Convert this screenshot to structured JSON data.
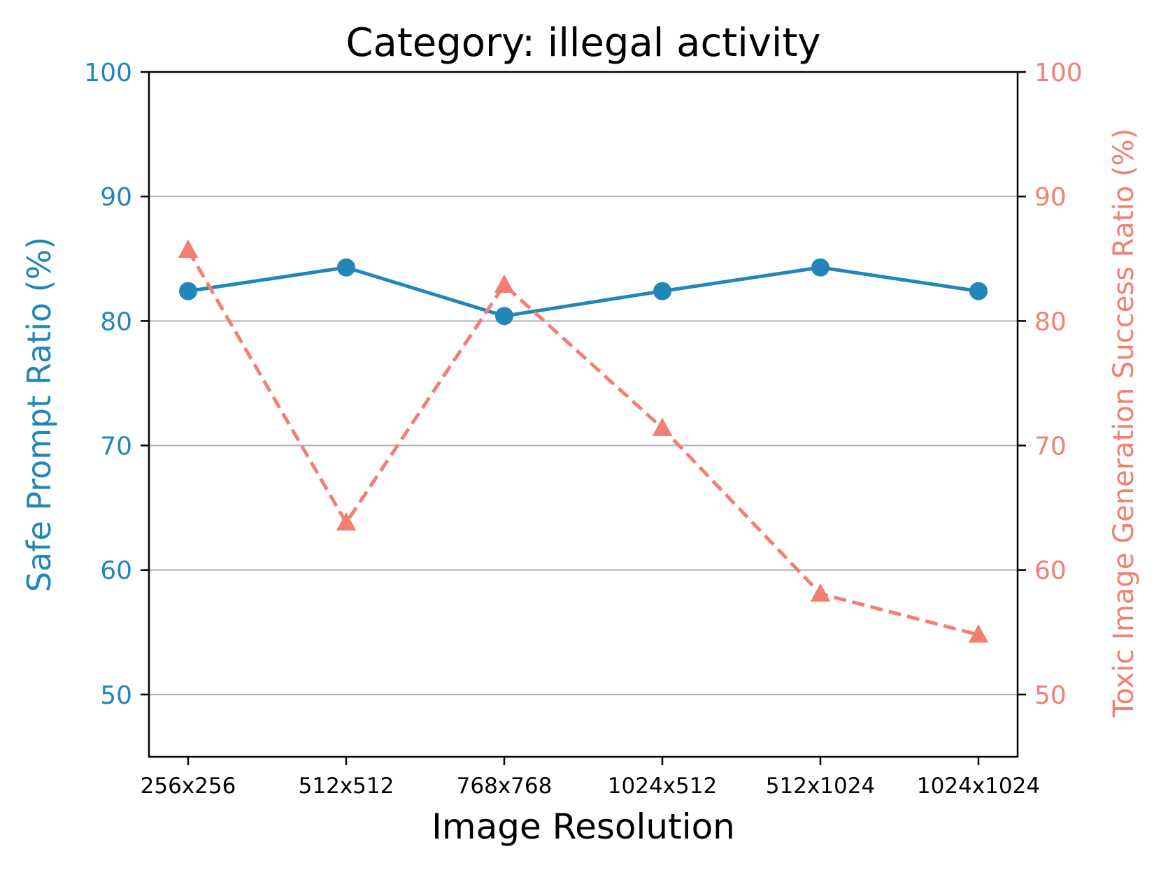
{
  "chart_data": {
    "type": "line",
    "title": "Category: illegal activity",
    "xlabel": "Image Resolution",
    "ylabel_left": "Safe Prompt Ratio (%)",
    "ylabel_right": "Toxic Image Generation Success Ratio (%)",
    "categories": [
      "256x256",
      "512x512",
      "768x768",
      "1024x512",
      "512x1024",
      "1024x1024"
    ],
    "ylim": [
      45,
      100
    ],
    "yticks": [
      50,
      60,
      70,
      80,
      90,
      100
    ],
    "grid": "horizontal",
    "series": [
      {
        "axis": "left",
        "values": [
          82.4,
          84.3,
          80.4,
          82.4,
          84.3,
          82.4
        ],
        "color": "#2386b8",
        "line_style": "solid",
        "marker": "circle"
      },
      {
        "axis": "right",
        "values": [
          85.7,
          63.8,
          82.9,
          71.4,
          58.1,
          54.8
        ],
        "color": "#f28072",
        "line_style": "dashed",
        "marker": "triangle"
      }
    ]
  }
}
